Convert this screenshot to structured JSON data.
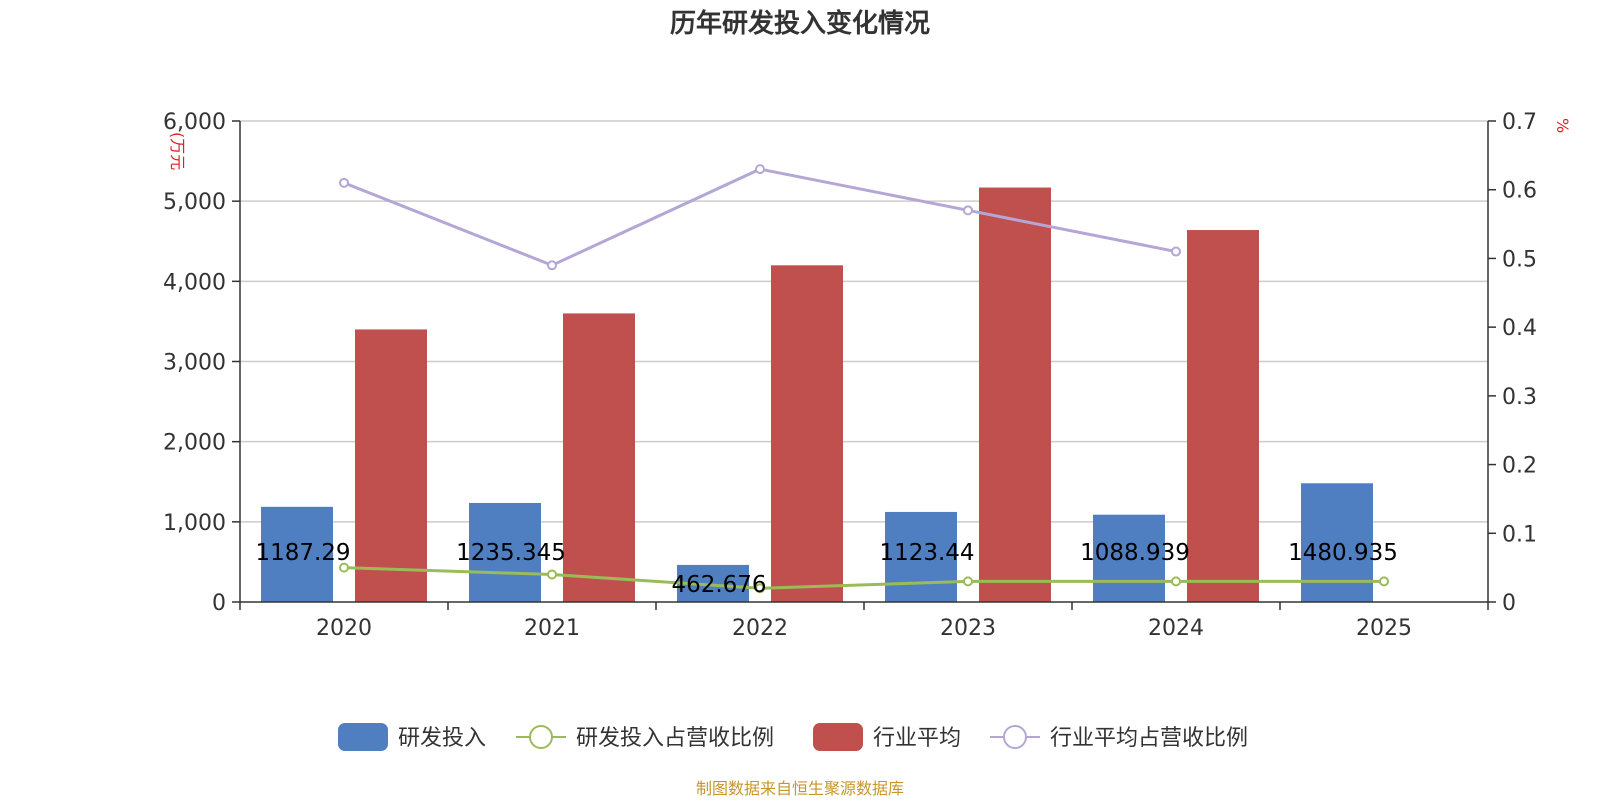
{
  "chart_data": {
    "type": "bar",
    "title": "历年研发投入变化情况",
    "categories": [
      "2020",
      "2021",
      "2022",
      "2023",
      "2024",
      "2025"
    ],
    "y_left": {
      "unit": "(万元",
      "ylim": [
        0,
        6000
      ],
      "ticks": [
        "0",
        "1,000",
        "2,000",
        "3,000",
        "4,000",
        "5,000",
        "6,000"
      ],
      "tick_values": [
        0,
        1000,
        2000,
        3000,
        4000,
        5000,
        6000
      ]
    },
    "y_right": {
      "unit": "%",
      "ylim": [
        0,
        0.7
      ],
      "ticks": [
        "0",
        "0.1",
        "0.2",
        "0.3",
        "0.4",
        "0.5",
        "0.6",
        "0.7"
      ],
      "tick_values": [
        0,
        0.1,
        0.2,
        0.3,
        0.4,
        0.5,
        0.6,
        0.7
      ]
    },
    "series": [
      {
        "name": "研发投入",
        "kind": "bar",
        "axis": "left",
        "color": "#4f7fc0",
        "values": [
          1187.29,
          1235.345,
          462.676,
          1123.44,
          1088.939,
          1480.935
        ],
        "labels": [
          "1187.29",
          "1235.345",
          "462.676",
          "1123.44",
          "1088.939",
          "1480.935"
        ]
      },
      {
        "name": "研发投入占营收比例",
        "kind": "line",
        "axis": "right",
        "color": "#9bbb59",
        "values": [
          0.05,
          0.04,
          0.02,
          0.03,
          0.03,
          0.03
        ]
      },
      {
        "name": "行业平均",
        "kind": "bar",
        "axis": "left",
        "color": "#c0504d",
        "values": [
          3400,
          3600,
          4200,
          5170,
          4640,
          null
        ]
      },
      {
        "name": "行业平均占营收比例",
        "kind": "line",
        "axis": "right",
        "color": "#b4a7d6",
        "values": [
          0.61,
          0.49,
          0.63,
          0.57,
          0.51,
          null
        ]
      }
    ],
    "grid": true,
    "legend_position": "bottom"
  },
  "source_text": "制图数据来自恒生聚源数据库"
}
